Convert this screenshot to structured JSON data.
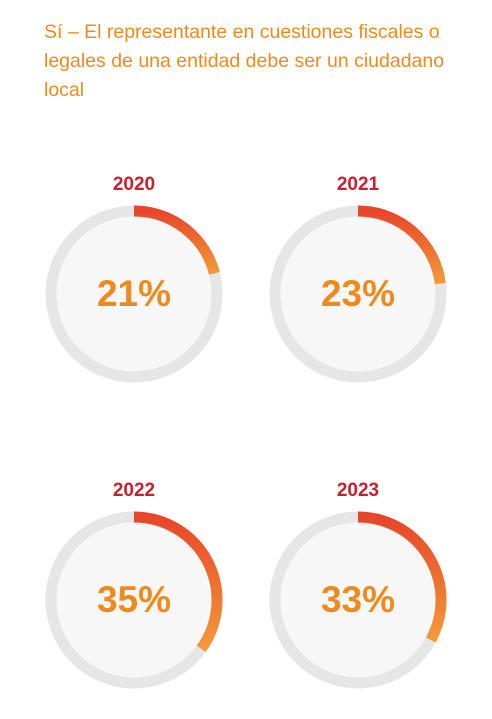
{
  "title": "Sí – El representante en cuestiones fiscales o legales de una entidad debe ser un ciudadano local",
  "colors": {
    "title": "#ef8a1f",
    "year": "#c8202f",
    "percent_text": "#ef8a1f",
    "track": "#e6e6e6",
    "inner": "#f6f7f6",
    "arc_start": "#e8452a",
    "arc_end": "#f39a3a"
  },
  "chart_data": {
    "type": "donut",
    "title": "Sí – El representante en cuestiones fiscales o legales de una entidad debe ser un ciudadano local",
    "items": [
      {
        "year": "2020",
        "value": 21,
        "label": "21%"
      },
      {
        "year": "2021",
        "value": 23,
        "label": "23%"
      },
      {
        "year": "2022",
        "value": 35,
        "label": "35%"
      },
      {
        "year": "2023",
        "value": 33,
        "label": "33%"
      }
    ]
  }
}
